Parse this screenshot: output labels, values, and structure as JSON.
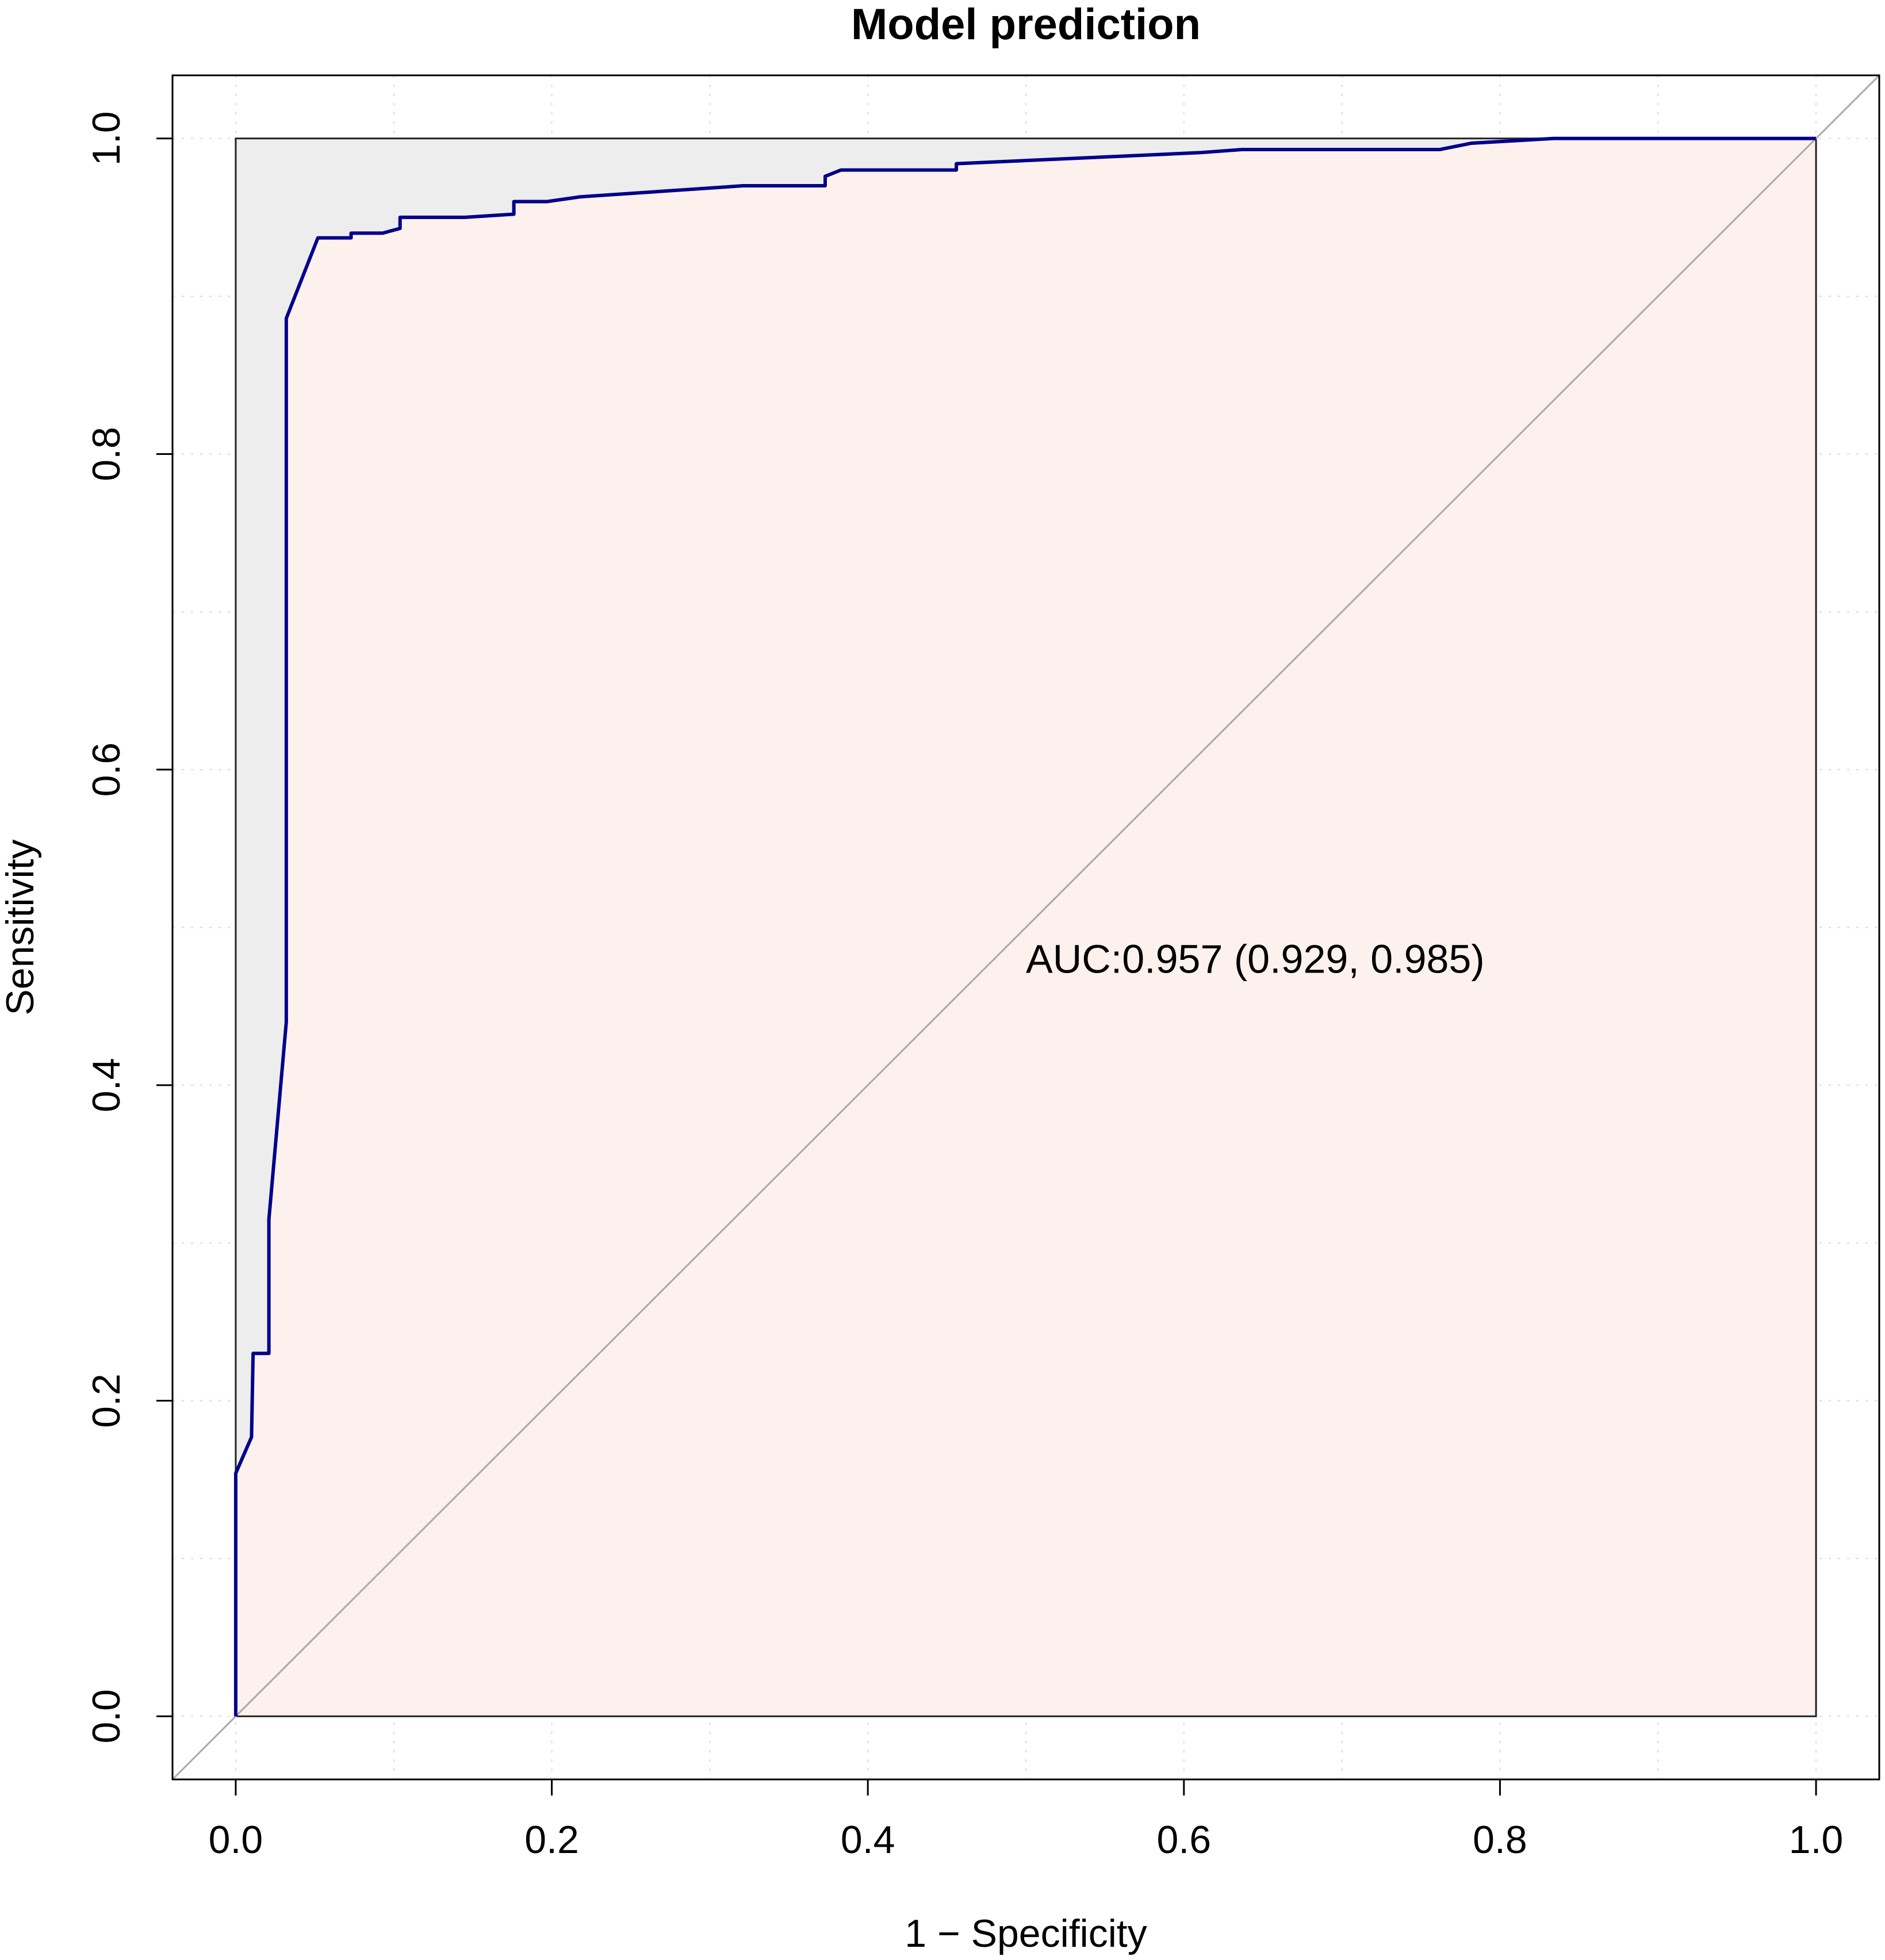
{
  "chart_data": {
    "type": "line",
    "title": "Model prediction",
    "xlabel": "1 − Specificity",
    "ylabel": "Sensitivity",
    "xlim": [
      -0.04,
      1.04
    ],
    "ylim": [
      -0.04,
      1.04
    ],
    "x_ticks": [
      "0.0",
      "0.2",
      "0.4",
      "0.6",
      "0.8",
      "1.0"
    ],
    "y_ticks": [
      "0.0",
      "0.2",
      "0.4",
      "0.6",
      "0.8",
      "1.0"
    ],
    "grid": true,
    "annotation": "AUC:0.957 (0.929, 0.985)",
    "annotation_position": [
      0.5,
      0.48
    ],
    "series": [
      {
        "color": "#00008b",
        "x": [
          0,
          0,
          0.01,
          0.011,
          0.021,
          0.021,
          0.032,
          0.032,
          0.052,
          0.073,
          0.073,
          0.093,
          0.104,
          0.104,
          0.145,
          0.176,
          0.176,
          0.197,
          0.218,
          0.321,
          0.373,
          0.373,
          0.383,
          0.456,
          0.456,
          0.61,
          0.637,
          0.741,
          0.762,
          0.782,
          0.834,
          1.0
        ],
        "y": [
          0,
          0.154,
          0.177,
          0.23,
          0.23,
          0.315,
          0.44,
          0.886,
          0.937,
          0.937,
          0.94,
          0.94,
          0.943,
          0.95,
          0.95,
          0.952,
          0.96,
          0.96,
          0.963,
          0.97,
          0.97,
          0.976,
          0.98,
          0.98,
          0.984,
          0.991,
          0.993,
          0.993,
          0.993,
          0.997,
          1.0,
          1.0
        ]
      }
    ],
    "reference_line": {
      "x": [
        -0.04,
        1.04
      ],
      "y": [
        -0.04,
        1.04
      ],
      "color": "#a9a9a9"
    },
    "fill_colors": {
      "above": "#ededed",
      "below": "#fdf1ee"
    }
  }
}
